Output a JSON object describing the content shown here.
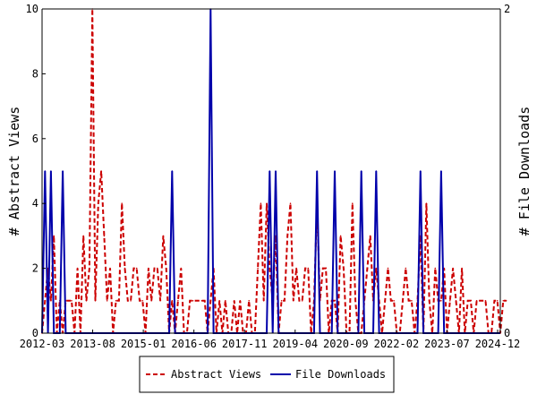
{
  "chart_data": {
    "type": "line",
    "ylabel_left": "# Abstract Views",
    "ylabel_right": "# File Downloads",
    "x_tick_labels": [
      "2012-03",
      "2013-08",
      "2015-01",
      "2016-06",
      "2017-11",
      "2019-04",
      "2020-09",
      "2022-02",
      "2023-07",
      "2024-12"
    ],
    "x_range_months": 155,
    "ylim_left": [
      0,
      10
    ],
    "yticks_left": [
      "0",
      "2",
      "4",
      "6",
      "8",
      "10"
    ],
    "ylim_right": [
      0,
      2
    ],
    "yticks_right": [
      "0",
      "2"
    ],
    "grid": false,
    "legend_position": "bottom-center",
    "series": [
      {
        "name": "Abstract Views",
        "axis": "left",
        "color": "#cc0000",
        "style": "dashed",
        "values": [
          0,
          1,
          2,
          1,
          3,
          0,
          1,
          0,
          1,
          1,
          1,
          0,
          2,
          0,
          3,
          1,
          2,
          10,
          1,
          4,
          5,
          3,
          1,
          2,
          0,
          1,
          1,
          4,
          2,
          1,
          1,
          2,
          2,
          1,
          1,
          0,
          2,
          1,
          2,
          2,
          1,
          3,
          2,
          0,
          1,
          0,
          1,
          2,
          0,
          0,
          1,
          1,
          1,
          1,
          1,
          1,
          0,
          1,
          2,
          0,
          1,
          0,
          1,
          0,
          0,
          1,
          0,
          1,
          0,
          0,
          1,
          0,
          0,
          2,
          4,
          1,
          4,
          2,
          1,
          3,
          0,
          1,
          1,
          3,
          4,
          1,
          2,
          1,
          1,
          2,
          2,
          0,
          1,
          4,
          1,
          2,
          2,
          0,
          1,
          1,
          0,
          3,
          2,
          0,
          0,
          4,
          1,
          0,
          0,
          1,
          2,
          3,
          1,
          2,
          1,
          0,
          1,
          2,
          1,
          1,
          0,
          0,
          1,
          2,
          1,
          1,
          0,
          1,
          3,
          0,
          4,
          1,
          0,
          2,
          1,
          1,
          2,
          0,
          1,
          2,
          1,
          0,
          2,
          0,
          1,
          1,
          0,
          1,
          1,
          1,
          1,
          0,
          0,
          1,
          1,
          0,
          1,
          1
        ]
      },
      {
        "name": "File Downloads",
        "axis": "right",
        "color": "#0000aa",
        "style": "solid",
        "values": [
          0,
          1,
          0,
          1,
          0,
          0,
          0,
          1,
          0,
          0,
          0,
          0,
          0,
          0,
          0,
          0,
          0,
          0,
          0,
          0,
          0,
          0,
          0,
          0,
          0,
          0,
          0,
          0,
          0,
          0,
          0,
          0,
          0,
          0,
          0,
          0,
          0,
          0,
          0,
          0,
          0,
          0,
          0,
          0,
          1,
          0,
          0,
          0,
          0,
          0,
          0,
          0,
          0,
          0,
          0,
          0,
          0,
          2,
          0,
          0,
          0,
          0,
          0,
          0,
          0,
          0,
          0,
          0,
          0,
          0,
          0,
          0,
          0,
          0,
          0,
          0,
          0,
          1,
          0,
          1,
          0,
          0,
          0,
          0,
          0,
          0,
          0,
          0,
          0,
          0,
          0,
          0,
          0,
          1,
          0,
          0,
          0,
          0,
          0,
          1,
          0,
          0,
          0,
          0,
          0,
          0,
          0,
          0,
          1,
          0,
          0,
          0,
          0,
          1,
          0,
          0,
          0,
          0,
          0,
          0,
          0,
          0,
          0,
          0,
          0,
          0,
          0,
          0,
          1,
          0,
          0,
          0,
          0,
          0,
          0,
          1,
          0,
          0,
          0,
          0,
          0,
          0,
          0,
          0,
          0,
          0,
          0,
          0,
          0,
          0,
          0,
          0,
          0,
          0,
          0,
          0
        ]
      }
    ]
  }
}
